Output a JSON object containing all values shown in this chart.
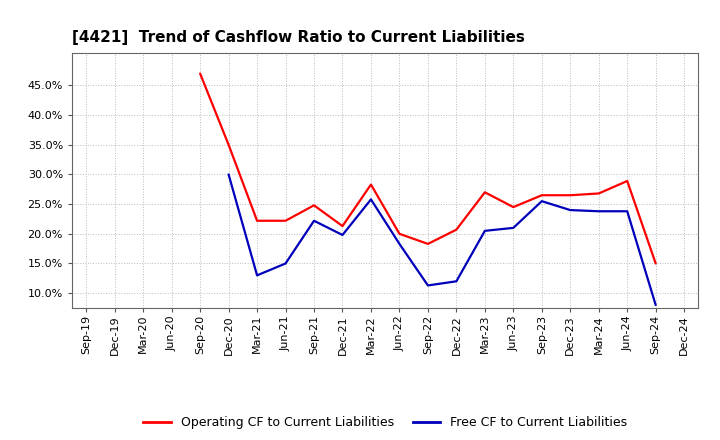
{
  "title": "[4421]  Trend of Cashflow Ratio to Current Liabilities",
  "x_labels": [
    "Sep-19",
    "Dec-19",
    "Mar-20",
    "Jun-20",
    "Sep-20",
    "Dec-20",
    "Mar-21",
    "Jun-21",
    "Sep-21",
    "Dec-21",
    "Mar-22",
    "Jun-22",
    "Sep-22",
    "Dec-22",
    "Mar-23",
    "Jun-23",
    "Sep-23",
    "Dec-23",
    "Mar-24",
    "Jun-24",
    "Sep-24",
    "Dec-24"
  ],
  "op_cf": [
    null,
    null,
    null,
    null,
    0.47,
    0.35,
    0.222,
    0.222,
    0.248,
    0.213,
    0.283,
    0.2,
    0.183,
    0.207,
    0.27,
    0.245,
    0.265,
    0.265,
    0.268,
    0.289,
    0.15,
    null
  ],
  "free_cf": [
    null,
    null,
    null,
    null,
    null,
    0.3,
    0.13,
    0.15,
    0.222,
    0.198,
    0.258,
    0.183,
    0.113,
    0.12,
    0.205,
    0.21,
    0.255,
    0.24,
    0.238,
    0.238,
    0.08,
    null
  ],
  "operating_color": "#FF0000",
  "free_color": "#0000BB",
  "ylim_min": 0.075,
  "ylim_max": 0.505,
  "yticks": [
    0.1,
    0.15,
    0.2,
    0.25,
    0.3,
    0.35,
    0.4,
    0.45
  ],
  "background_color": "#FFFFFF",
  "grid_color": "#AAAAAA",
  "legend_op": "Operating CF to Current Liabilities",
  "legend_free": "Free CF to Current Liabilities",
  "title_fontsize": 11,
  "tick_fontsize": 8,
  "legend_fontsize": 9,
  "linewidth": 1.6
}
